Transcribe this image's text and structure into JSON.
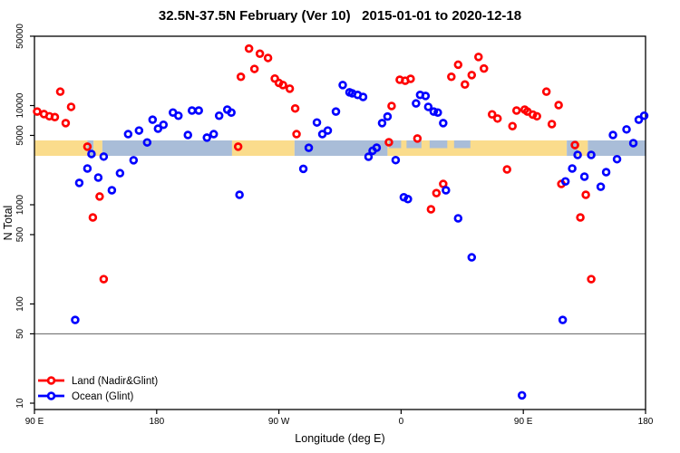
{
  "title": "32.5N-37.5N February (Ver 10)   2015-01-01 to 2020-12-18",
  "legend": {
    "items": [
      {
        "label": "Land (Nadir&Glint)",
        "color": "#ff0000",
        "marker": "open-circle-with-line"
      },
      {
        "label": "Ocean (Glint)",
        "color": "#0000ff",
        "marker": "open-circle-with-line"
      }
    ]
  },
  "chart_data": {
    "type": "scatter",
    "title": "32.5N-37.5N February (Ver 10)   2015-01-01 to 2020-12-18",
    "xlabel": "Longitude (deg E)",
    "ylabel": "N Total",
    "y_scale": "log10",
    "ylim": [
      10,
      50000
    ],
    "xlim_display_deg": [
      90,
      540
    ],
    "x_ticks": [
      {
        "lon": 90,
        "label": "90 E"
      },
      {
        "lon": 180,
        "label": "180"
      },
      {
        "lon": 270,
        "label": "90 W"
      },
      {
        "lon": 360,
        "label": "0"
      },
      {
        "lon": 450,
        "label": "90 E"
      },
      {
        "lon": 540,
        "label": "180"
      }
    ],
    "y_ticks": [
      10,
      50,
      100,
      500,
      1000,
      5000,
      10000,
      50000
    ],
    "reference_line": {
      "value": 50,
      "color": "#7d7d7d"
    },
    "coast_band": {
      "description": "land/ocean strip drawn across plot at N ~3150-4450",
      "value_range": [
        3150,
        4450
      ],
      "land_color": "#fadc8c",
      "ocean_color": "#a9bdd8",
      "segments": [
        {
          "type": "land",
          "from": 90,
          "to": 129
        },
        {
          "type": "ocean",
          "from": 129,
          "to": 133.5
        },
        {
          "type": "land",
          "from": 133.5,
          "to": 140
        },
        {
          "type": "ocean",
          "from": 140,
          "to": 235.5
        },
        {
          "type": "land",
          "from": 235.5,
          "to": 281.5
        },
        {
          "type": "ocean",
          "from": 281.5,
          "to": 350
        },
        {
          "type": "land",
          "from": 350,
          "to": 482
        },
        {
          "type": "ocean",
          "from": 482,
          "to": 490
        },
        {
          "type": "land",
          "from": 490,
          "to": 497.5
        },
        {
          "type": "ocean",
          "from": 497.5,
          "to": 540
        }
      ],
      "inland_sea_patches": [
        {
          "from": 351,
          "to": 360
        },
        {
          "from": 364,
          "to": 375
        },
        {
          "from": 381,
          "to": 394
        },
        {
          "from": 399,
          "to": 411
        }
      ]
    },
    "series": [
      {
        "name": "Land (Nadir&Glint)",
        "color": "#ff0000",
        "points": [
          [
            92,
            8700
          ],
          [
            97,
            8200
          ],
          [
            101,
            7800
          ],
          [
            105,
            7650
          ],
          [
            109,
            13800
          ],
          [
            117,
            9700
          ],
          [
            113,
            6650
          ],
          [
            129,
            3850
          ],
          [
            138,
            1210
          ],
          [
            133,
            745
          ],
          [
            141,
            178
          ],
          [
            242,
            19500
          ],
          [
            248,
            37500
          ],
          [
            256,
            33300
          ],
          [
            262,
            30200
          ],
          [
            252,
            23400
          ],
          [
            267,
            18700
          ],
          [
            270,
            16900
          ],
          [
            273,
            16100
          ],
          [
            278,
            14800
          ],
          [
            282,
            9350
          ],
          [
            283,
            5150
          ],
          [
            240,
            3850
          ],
          [
            353,
            9900
          ],
          [
            351,
            4270
          ],
          [
            372,
            4650
          ],
          [
            359,
            18200
          ],
          [
            363,
            17800
          ],
          [
            367,
            18600
          ],
          [
            391,
            1620
          ],
          [
            386,
            1310
          ],
          [
            382,
            900
          ],
          [
            397,
            19500
          ],
          [
            402,
            25800
          ],
          [
            412,
            20300
          ],
          [
            417,
            30900
          ],
          [
            421,
            23600
          ],
          [
            407,
            16300
          ],
          [
            427,
            8150
          ],
          [
            431,
            7400
          ],
          [
            442,
            6200
          ],
          [
            445,
            8900
          ],
          [
            451,
            9100
          ],
          [
            453,
            8700
          ],
          [
            457,
            8100
          ],
          [
            460,
            7800
          ],
          [
            467,
            13800
          ],
          [
            471,
            6500
          ],
          [
            476,
            10100
          ],
          [
            488,
            4000
          ],
          [
            438,
            2270
          ],
          [
            478,
            1620
          ],
          [
            496,
            1260
          ],
          [
            492,
            745
          ],
          [
            500,
            178
          ]
        ]
      },
      {
        "name": "Ocean (Glint)",
        "color": "#0000ff",
        "points": [
          [
            120,
            69
          ],
          [
            123,
            1660
          ],
          [
            129,
            2320
          ],
          [
            132,
            3250
          ],
          [
            137,
            1880
          ],
          [
            141,
            3060
          ],
          [
            147,
            1400
          ],
          [
            153,
            2080
          ],
          [
            159,
            5150
          ],
          [
            163,
            2810
          ],
          [
            167,
            5600
          ],
          [
            173,
            4250
          ],
          [
            177,
            7200
          ],
          [
            181,
            5850
          ],
          [
            185,
            6400
          ],
          [
            192,
            8500
          ],
          [
            196,
            7900
          ],
          [
            203,
            5050
          ],
          [
            206,
            8900
          ],
          [
            211,
            8900
          ],
          [
            217,
            4750
          ],
          [
            222,
            5150
          ],
          [
            226,
            7900
          ],
          [
            232,
            9100
          ],
          [
            235,
            8500
          ],
          [
            241,
            1260
          ],
          [
            288,
            2300
          ],
          [
            292,
            3750
          ],
          [
            298,
            6750
          ],
          [
            302,
            5150
          ],
          [
            306,
            5600
          ],
          [
            312,
            8700
          ],
          [
            317,
            16100
          ],
          [
            322,
            13600
          ],
          [
            324,
            13300
          ],
          [
            328,
            12800
          ],
          [
            332,
            12200
          ],
          [
            336,
            3050
          ],
          [
            339,
            3500
          ],
          [
            342,
            3760
          ],
          [
            346,
            6650
          ],
          [
            350,
            7750
          ],
          [
            356,
            2820
          ],
          [
            362,
            1190
          ],
          [
            365,
            1140
          ],
          [
            412,
            295
          ],
          [
            371,
            10500
          ],
          [
            374,
            12800
          ],
          [
            378,
            12500
          ],
          [
            380,
            9700
          ],
          [
            384,
            8700
          ],
          [
            387,
            8500
          ],
          [
            391,
            6650
          ],
          [
            393,
            1400
          ],
          [
            402,
            730
          ],
          [
            449,
            12
          ],
          [
            481,
            1720
          ],
          [
            486,
            2320
          ],
          [
            490,
            3180
          ],
          [
            495,
            1920
          ],
          [
            500,
            3180
          ],
          [
            511,
            2130
          ],
          [
            507,
            1520
          ],
          [
            519,
            2880
          ],
          [
            516,
            5050
          ],
          [
            526,
            5750
          ],
          [
            531,
            4180
          ],
          [
            535,
            7200
          ],
          [
            539,
            7900
          ],
          [
            479,
            69
          ]
        ]
      }
    ]
  }
}
